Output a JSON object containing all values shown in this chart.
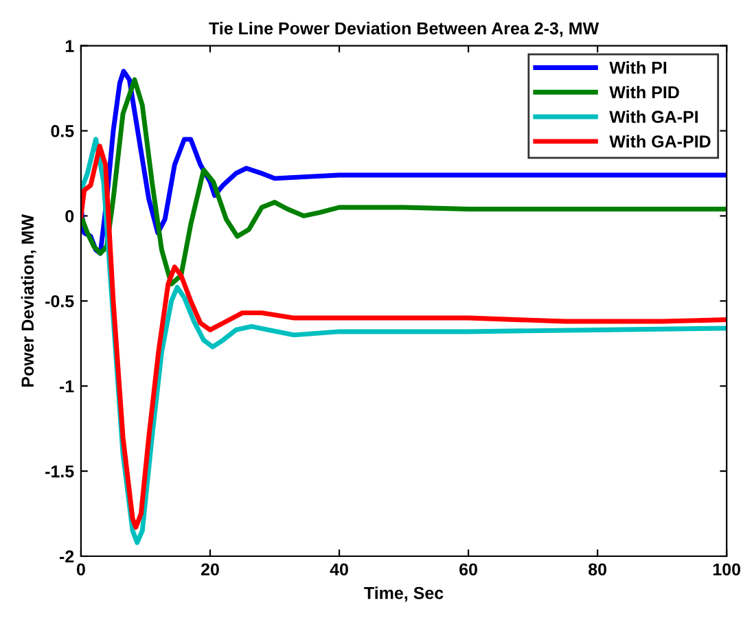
{
  "chart_data": {
    "type": "line",
    "title": "Tie Line Power Deviation Between Area 2-3, MW",
    "xlabel": "Time, Sec",
    "ylabel": "Power Deviation, MW",
    "xlim": [
      0,
      100
    ],
    "ylim": [
      -2,
      1
    ],
    "xticks": [
      0,
      20,
      40,
      60,
      80,
      100
    ],
    "yticks": [
      -2,
      -1.5,
      -1,
      -0.5,
      0,
      0.5,
      1
    ],
    "grid": false,
    "legend": "top right",
    "marker": "none",
    "line_style": "solid",
    "series": [
      {
        "name": "With PI",
        "color": "#0000ff",
        "x": [
          0,
          0.5,
          1.5,
          2.3,
          3,
          4,
          5,
          6,
          6.6,
          7.5,
          9,
          10.5,
          11.9,
          13,
          14.5,
          16,
          17,
          18.5,
          20,
          20.7,
          22,
          24,
          25.6,
          28,
          30,
          35,
          40,
          60,
          80,
          100
        ],
        "values": [
          0.05,
          -0.1,
          -0.12,
          -0.2,
          -0.22,
          0.1,
          0.5,
          0.78,
          0.85,
          0.8,
          0.45,
          0.1,
          -0.1,
          -0.02,
          0.3,
          0.45,
          0.45,
          0.3,
          0.2,
          0.12,
          0.18,
          0.25,
          0.28,
          0.25,
          0.22,
          0.23,
          0.24,
          0.24,
          0.24,
          0.24
        ]
      },
      {
        "name": "With PID",
        "color": "#008000",
        "x": [
          0,
          1,
          2,
          3,
          4,
          5,
          6.5,
          8.3,
          9.5,
          11,
          12.5,
          14,
          15.5,
          17,
          19,
          20.5,
          22.5,
          24.2,
          26,
          28,
          30,
          32,
          34.5,
          37,
          40,
          50,
          60,
          80,
          100
        ],
        "values": [
          0,
          -0.1,
          -0.18,
          -0.22,
          -0.18,
          0.1,
          0.6,
          0.8,
          0.65,
          0.2,
          -0.2,
          -0.4,
          -0.35,
          -0.05,
          0.27,
          0.2,
          -0.02,
          -0.12,
          -0.08,
          0.05,
          0.08,
          0.04,
          0.0,
          0.02,
          0.05,
          0.05,
          0.04,
          0.04,
          0.04
        ]
      },
      {
        "name": "With GA-PI",
        "color": "#00bfbf",
        "x": [
          0,
          1,
          2.3,
          3.5,
          5,
          6.5,
          8,
          8.7,
          9.5,
          11,
          12.5,
          14,
          14.9,
          16,
          17.5,
          19,
          20.4,
          22,
          24,
          26.4,
          29,
          33,
          40,
          60,
          80,
          100
        ],
        "values": [
          0.15,
          0.25,
          0.45,
          0.2,
          -0.6,
          -1.4,
          -1.85,
          -1.92,
          -1.85,
          -1.3,
          -0.8,
          -0.5,
          -0.42,
          -0.48,
          -0.62,
          -0.73,
          -0.77,
          -0.73,
          -0.67,
          -0.65,
          -0.67,
          -0.7,
          -0.68,
          -0.68,
          -0.67,
          -0.66
        ]
      },
      {
        "name": "With GA-PID",
        "color": "#ff0000",
        "x": [
          0,
          0.5,
          1.5,
          2.9,
          3.8,
          5,
          6.5,
          8,
          8.5,
          9.3,
          10.5,
          12,
          13.5,
          14.5,
          15.5,
          17,
          18.5,
          20,
          22,
          25,
          28,
          33,
          40,
          60,
          75,
          90,
          100
        ],
        "values": [
          0,
          0.15,
          0.18,
          0.41,
          0.3,
          -0.5,
          -1.3,
          -1.78,
          -1.83,
          -1.75,
          -1.3,
          -0.8,
          -0.4,
          -0.3,
          -0.35,
          -0.5,
          -0.63,
          -0.67,
          -0.63,
          -0.57,
          -0.57,
          -0.6,
          -0.6,
          -0.6,
          -0.62,
          -0.62,
          -0.61
        ]
      }
    ]
  }
}
